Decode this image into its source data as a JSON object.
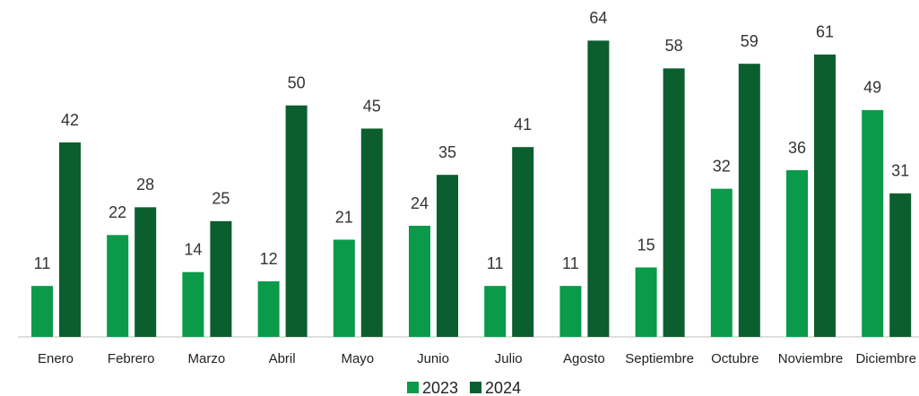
{
  "chart_data": {
    "type": "bar",
    "categories": [
      "Enero",
      "Febrero",
      "Marzo",
      "Abril",
      "Mayo",
      "Junio",
      "Julio",
      "Agosto",
      "Septiembre",
      "Octubre",
      "Noviembre",
      "Diciembre"
    ],
    "series": [
      {
        "name": "2023",
        "color": "#0a9a4a",
        "values": [
          11,
          22,
          14,
          12,
          21,
          24,
          11,
          11,
          15,
          32,
          36,
          49
        ]
      },
      {
        "name": "2024",
        "color": "#0b5e2e",
        "values": [
          42,
          28,
          25,
          50,
          45,
          35,
          41,
          64,
          58,
          59,
          61,
          31
        ]
      }
    ],
    "ylim": [
      0,
      72
    ],
    "legend": "bottom"
  }
}
